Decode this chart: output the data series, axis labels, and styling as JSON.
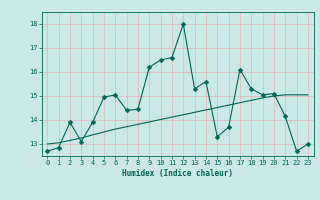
{
  "xlabel": "Humidex (Indice chaleur)",
  "bg_color": "#cce8e4",
  "grid_color": "#ddb8b8",
  "line_color": "#006655",
  "xlim": [
    -0.5,
    23.5
  ],
  "ylim": [
    12.5,
    18.5
  ],
  "xticks": [
    0,
    1,
    2,
    3,
    4,
    5,
    6,
    7,
    8,
    9,
    10,
    11,
    12,
    13,
    14,
    15,
    16,
    17,
    18,
    19,
    20,
    21,
    22,
    23
  ],
  "yticks": [
    13,
    14,
    15,
    16,
    17,
    18
  ],
  "x_data": [
    0,
    1,
    2,
    3,
    4,
    5,
    6,
    7,
    8,
    9,
    10,
    11,
    12,
    13,
    14,
    15,
    16,
    17,
    18,
    19,
    20,
    21,
    22,
    23
  ],
  "y_jagged": [
    12.7,
    12.85,
    13.9,
    13.1,
    13.9,
    14.95,
    15.05,
    14.4,
    14.45,
    16.2,
    16.5,
    16.6,
    18.0,
    15.3,
    15.6,
    13.3,
    13.7,
    16.1,
    15.3,
    15.05,
    15.1,
    14.15,
    12.7,
    13.0
  ],
  "y_trend": [
    13.0,
    13.05,
    13.15,
    13.25,
    13.38,
    13.5,
    13.62,
    13.72,
    13.82,
    13.92,
    14.02,
    14.12,
    14.22,
    14.32,
    14.42,
    14.52,
    14.62,
    14.72,
    14.82,
    14.92,
    15.0,
    15.05,
    15.05,
    15.05
  ],
  "markersize": 2.5,
  "linewidth": 0.8,
  "axis_fontsize": 5.5,
  "tick_fontsize": 5.0
}
